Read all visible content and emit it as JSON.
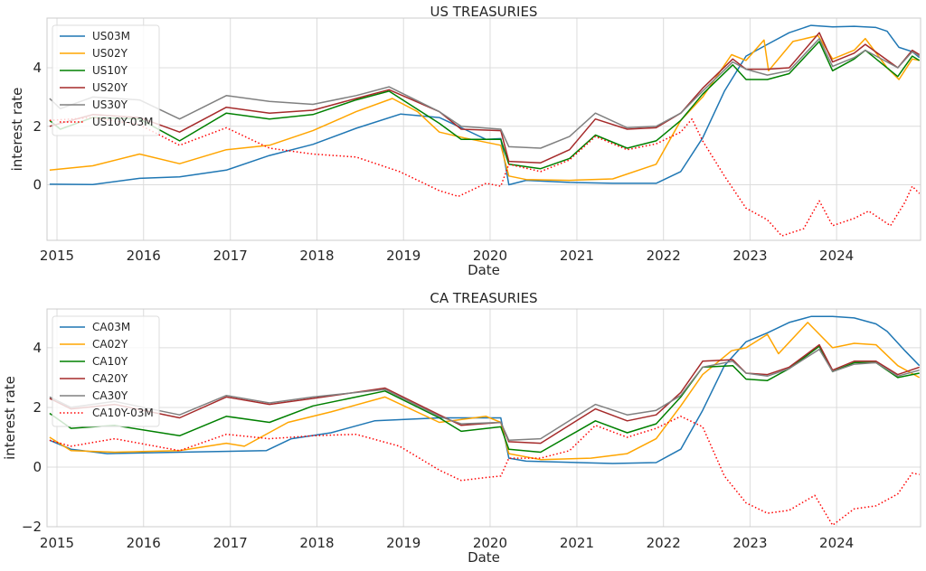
{
  "chart_data": [
    {
      "type": "line",
      "title": "US TREASURIES",
      "xlabel": "Date",
      "ylabel": "interest rate",
      "xlim": [
        "2014-11-20",
        "2024-12-20"
      ],
      "ylim": [
        -1.9,
        5.7
      ],
      "xticks": [
        "2015",
        "2016",
        "2017",
        "2018",
        "2019",
        "2020",
        "2021",
        "2022",
        "2023",
        "2024"
      ],
      "yticks": [
        0,
        2,
        4
      ],
      "grid": true,
      "legend": "top-left",
      "series": [
        {
          "name": "US03M",
          "color": "#1f77b4",
          "style": "solid",
          "x": [
            "2014-12-01",
            "2015-06-01",
            "2015-12-15",
            "2016-06-01",
            "2016-12-15",
            "2017-06-15",
            "2017-12-15",
            "2018-06-15",
            "2018-12-20",
            "2019-06-01",
            "2019-09-15",
            "2019-12-15",
            "2020-02-15",
            "2020-03-20",
            "2020-06-01",
            "2020-12-01",
            "2021-06-01",
            "2021-12-01",
            "2022-03-15",
            "2022-06-15",
            "2022-09-15",
            "2022-12-15",
            "2023-03-15",
            "2023-06-15",
            "2023-09-15",
            "2023-12-15",
            "2024-03-15",
            "2024-06-15",
            "2024-08-01",
            "2024-09-20",
            "2024-11-15",
            "2024-12-15"
          ],
          "y": [
            0.02,
            0.01,
            0.22,
            0.27,
            0.5,
            1.0,
            1.38,
            1.93,
            2.42,
            2.3,
            1.9,
            1.55,
            1.58,
            0.0,
            0.15,
            0.08,
            0.05,
            0.05,
            0.45,
            1.6,
            3.2,
            4.4,
            4.8,
            5.2,
            5.45,
            5.4,
            5.42,
            5.38,
            5.25,
            4.7,
            4.55,
            4.35
          ]
        },
        {
          "name": "US02Y",
          "color": "#ffa500",
          "style": "solid",
          "x": [
            "2014-12-01",
            "2015-06-01",
            "2015-12-15",
            "2016-06-01",
            "2016-12-15",
            "2017-06-15",
            "2017-12-15",
            "2018-06-15",
            "2018-11-15",
            "2019-03-01",
            "2019-06-01",
            "2019-09-15",
            "2020-02-15",
            "2020-03-20",
            "2020-06-01",
            "2020-12-01",
            "2021-06-01",
            "2021-12-01",
            "2022-03-15",
            "2022-06-15",
            "2022-10-15",
            "2022-12-15",
            "2023-03-01",
            "2023-03-20",
            "2023-07-01",
            "2023-10-15",
            "2023-12-15",
            "2024-03-15",
            "2024-05-01",
            "2024-08-01",
            "2024-09-20",
            "2024-11-15",
            "2024-12-15"
          ],
          "y": [
            0.5,
            0.65,
            1.05,
            0.72,
            1.2,
            1.35,
            1.85,
            2.5,
            2.95,
            2.5,
            1.8,
            1.6,
            1.35,
            0.3,
            0.18,
            0.15,
            0.2,
            0.7,
            2.2,
            3.0,
            4.45,
            4.25,
            4.95,
            3.9,
            4.9,
            5.1,
            4.3,
            4.6,
            5.0,
            4.0,
            3.6,
            4.3,
            4.25
          ]
        },
        {
          "name": "US10Y",
          "color": "#008000",
          "style": "solid",
          "x": [
            "2014-12-01",
            "2015-01-15",
            "2015-06-01",
            "2015-12-15",
            "2016-06-01",
            "2016-12-15",
            "2017-06-15",
            "2017-12-15",
            "2018-06-15",
            "2018-11-01",
            "2019-06-01",
            "2019-09-01",
            "2020-02-15",
            "2020-03-20",
            "2020-08-01",
            "2020-12-01",
            "2021-03-20",
            "2021-08-01",
            "2021-12-01",
            "2022-03-15",
            "2022-06-15",
            "2022-10-20",
            "2022-12-15",
            "2023-03-15",
            "2023-06-15",
            "2023-10-20",
            "2023-12-15",
            "2024-03-15",
            "2024-05-01",
            "2024-09-15",
            "2024-11-15",
            "2024-12-15"
          ],
          "y": [
            2.2,
            1.9,
            2.3,
            2.25,
            1.5,
            2.45,
            2.25,
            2.4,
            2.9,
            3.2,
            2.1,
            1.55,
            1.55,
            0.7,
            0.55,
            0.9,
            1.7,
            1.25,
            1.5,
            2.2,
            3.1,
            4.1,
            3.6,
            3.6,
            3.8,
            4.9,
            3.9,
            4.3,
            4.6,
            3.7,
            4.4,
            4.25
          ]
        },
        {
          "name": "US20Y",
          "color": "#a52a2a",
          "style": "solid",
          "x": [
            "2014-12-01",
            "2015-06-01",
            "2015-12-15",
            "2016-06-01",
            "2016-12-15",
            "2017-06-15",
            "2017-12-15",
            "2018-06-15",
            "2018-11-01",
            "2019-06-01",
            "2019-09-01",
            "2020-02-15",
            "2020-03-20",
            "2020-08-01",
            "2020-12-01",
            "2021-03-20",
            "2021-08-01",
            "2021-12-01",
            "2022-03-15",
            "2022-06-15",
            "2022-10-20",
            "2022-12-15",
            "2023-03-15",
            "2023-06-15",
            "2023-10-20",
            "2023-12-15",
            "2024-03-15",
            "2024-05-01",
            "2024-09-15",
            "2024-11-15",
            "2024-12-15"
          ],
          "y": [
            2.0,
            2.4,
            2.3,
            1.8,
            2.65,
            2.45,
            2.55,
            2.95,
            3.25,
            2.5,
            1.9,
            1.85,
            0.8,
            0.75,
            1.2,
            2.25,
            1.9,
            1.95,
            2.45,
            3.3,
            4.3,
            3.95,
            3.95,
            4.0,
            5.2,
            4.2,
            4.5,
            4.8,
            4.0,
            4.6,
            4.45
          ]
        },
        {
          "name": "US30Y",
          "color": "#808080",
          "style": "solid",
          "x": [
            "2014-12-01",
            "2015-01-15",
            "2015-06-01",
            "2015-12-15",
            "2016-06-01",
            "2016-12-15",
            "2017-06-15",
            "2017-12-15",
            "2018-06-15",
            "2018-11-01",
            "2019-06-01",
            "2019-09-01",
            "2020-02-15",
            "2020-03-20",
            "2020-08-01",
            "2020-12-01",
            "2021-03-20",
            "2021-08-01",
            "2021-12-01",
            "2022-03-15",
            "2022-06-15",
            "2022-10-20",
            "2022-12-15",
            "2023-03-15",
            "2023-06-15",
            "2023-10-20",
            "2023-12-15",
            "2024-03-15",
            "2024-05-01",
            "2024-09-15",
            "2024-11-15",
            "2024-12-15"
          ],
          "y": [
            2.95,
            2.6,
            3.0,
            2.9,
            2.25,
            3.05,
            2.85,
            2.75,
            3.05,
            3.35,
            2.5,
            2.0,
            1.9,
            1.3,
            1.25,
            1.65,
            2.45,
            1.95,
            2.0,
            2.45,
            3.2,
            4.2,
            3.95,
            3.75,
            3.9,
            5.0,
            4.05,
            4.35,
            4.6,
            4.0,
            4.55,
            4.4
          ]
        },
        {
          "name": "US10Y-03M",
          "color": "#ff0000",
          "style": "dotted",
          "x": [
            "2014-12-01",
            "2015-06-01",
            "2015-12-15",
            "2016-06-01",
            "2016-12-15",
            "2017-06-15",
            "2017-12-15",
            "2018-06-15",
            "2018-12-15",
            "2019-06-01",
            "2019-08-20",
            "2019-12-15",
            "2020-02-15",
            "2020-03-20",
            "2020-08-01",
            "2020-12-01",
            "2021-03-20",
            "2021-08-01",
            "2021-12-01",
            "2022-03-15",
            "2022-05-01",
            "2022-06-15",
            "2022-09-15",
            "2022-12-15",
            "2023-03-15",
            "2023-05-15",
            "2023-08-15",
            "2023-10-20",
            "2023-12-15",
            "2024-03-15",
            "2024-05-15",
            "2024-08-15",
            "2024-10-15",
            "2024-11-15",
            "2024-12-15"
          ],
          "y": [
            2.2,
            2.3,
            2.05,
            1.35,
            1.95,
            1.25,
            1.05,
            0.95,
            0.45,
            -0.2,
            -0.4,
            0.05,
            -0.05,
            0.7,
            0.45,
            0.85,
            1.65,
            1.2,
            1.4,
            1.8,
            2.25,
            1.5,
            0.3,
            -0.8,
            -1.2,
            -1.75,
            -1.5,
            -0.55,
            -1.4,
            -1.15,
            -0.9,
            -1.4,
            -0.6,
            -0.05,
            -0.3
          ]
        }
      ]
    },
    {
      "type": "line",
      "title": "CA TREASURIES",
      "xlabel": "Date",
      "ylabel": "interest rate",
      "xlim": [
        "2014-11-20",
        "2024-12-20"
      ],
      "ylim": [
        -2.0,
        5.3
      ],
      "xticks": [
        "2015",
        "2016",
        "2017",
        "2018",
        "2019",
        "2020",
        "2021",
        "2022",
        "2023",
        "2024"
      ],
      "yticks": [
        -2,
        0,
        2,
        4
      ],
      "grid": true,
      "legend": "top-left",
      "series": [
        {
          "name": "CA03M",
          "color": "#1f77b4",
          "style": "solid",
          "x": [
            "2014-12-01",
            "2015-03-01",
            "2015-08-01",
            "2016-06-01",
            "2017-06-01",
            "2017-09-15",
            "2018-03-01",
            "2018-09-01",
            "2019-06-01",
            "2020-02-15",
            "2020-03-20",
            "2020-06-01",
            "2021-06-01",
            "2021-12-01",
            "2022-03-15",
            "2022-06-15",
            "2022-09-15",
            "2022-12-15",
            "2023-03-15",
            "2023-06-15",
            "2023-09-15",
            "2023-12-15",
            "2024-03-15",
            "2024-06-15",
            "2024-08-01",
            "2024-10-15",
            "2024-12-15"
          ],
          "y": [
            0.9,
            0.6,
            0.45,
            0.5,
            0.55,
            0.95,
            1.15,
            1.55,
            1.65,
            1.65,
            0.3,
            0.2,
            0.12,
            0.15,
            0.6,
            1.9,
            3.4,
            4.2,
            4.5,
            4.85,
            5.05,
            5.05,
            5.0,
            4.8,
            4.55,
            3.9,
            3.4
          ]
        },
        {
          "name": "CA02Y",
          "color": "#ffa500",
          "style": "solid",
          "x": [
            "2014-12-01",
            "2015-03-01",
            "2015-09-01",
            "2016-06-01",
            "2016-12-15",
            "2017-03-01",
            "2017-09-01",
            "2018-03-01",
            "2018-10-15",
            "2019-06-01",
            "2019-12-15",
            "2020-02-15",
            "2020-03-20",
            "2020-08-01",
            "2021-03-01",
            "2021-08-01",
            "2021-12-01",
            "2022-03-15",
            "2022-06-15",
            "2022-10-15",
            "2022-12-15",
            "2023-03-15",
            "2023-05-01",
            "2023-09-01",
            "2023-12-15",
            "2024-03-15",
            "2024-06-15",
            "2024-09-15",
            "2024-12-15"
          ],
          "y": [
            1.0,
            0.55,
            0.5,
            0.55,
            0.8,
            0.7,
            1.5,
            1.85,
            2.35,
            1.5,
            1.7,
            1.5,
            0.45,
            0.25,
            0.3,
            0.45,
            0.95,
            2.05,
            3.1,
            3.9,
            4.0,
            4.45,
            3.8,
            4.85,
            4.0,
            4.15,
            4.1,
            3.4,
            3.0
          ]
        },
        {
          "name": "CA10Y",
          "color": "#008000",
          "style": "solid",
          "x": [
            "2014-12-01",
            "2015-03-01",
            "2015-09-01",
            "2016-06-01",
            "2016-12-15",
            "2017-06-15",
            "2017-12-15",
            "2018-10-15",
            "2019-06-01",
            "2019-09-01",
            "2020-02-15",
            "2020-03-20",
            "2020-08-01",
            "2021-03-20",
            "2021-08-01",
            "2021-12-01",
            "2022-03-15",
            "2022-06-15",
            "2022-10-20",
            "2022-12-15",
            "2023-03-15",
            "2023-06-15",
            "2023-10-20",
            "2023-12-15",
            "2024-03-15",
            "2024-06-15",
            "2024-09-15",
            "2024-12-15"
          ],
          "y": [
            1.8,
            1.3,
            1.4,
            1.05,
            1.7,
            1.5,
            2.05,
            2.55,
            1.65,
            1.2,
            1.35,
            0.6,
            0.5,
            1.55,
            1.15,
            1.45,
            2.35,
            3.35,
            3.4,
            2.95,
            2.9,
            3.3,
            4.05,
            3.2,
            3.5,
            3.5,
            3.0,
            3.15
          ]
        },
        {
          "name": "CA20Y",
          "color": "#a52a2a",
          "style": "solid",
          "x": [
            "2014-12-01",
            "2015-03-01",
            "2015-09-01",
            "2016-06-01",
            "2016-12-15",
            "2017-06-15",
            "2017-12-15",
            "2018-10-15",
            "2019-06-01",
            "2019-09-01",
            "2020-02-15",
            "2020-03-20",
            "2020-08-01",
            "2021-03-20",
            "2021-08-01",
            "2021-12-01",
            "2022-03-15",
            "2022-06-15",
            "2022-10-20",
            "2022-12-15",
            "2023-03-15",
            "2023-06-15",
            "2023-10-20",
            "2023-12-15",
            "2024-03-15",
            "2024-06-15",
            "2024-09-15",
            "2024-12-15"
          ],
          "y": [
            2.3,
            1.95,
            2.1,
            1.65,
            2.35,
            2.1,
            2.3,
            2.65,
            1.75,
            1.4,
            1.5,
            0.85,
            0.8,
            1.95,
            1.55,
            1.75,
            2.5,
            3.55,
            3.6,
            3.15,
            3.1,
            3.35,
            4.1,
            3.25,
            3.55,
            3.55,
            3.1,
            3.35
          ]
        },
        {
          "name": "CA30Y",
          "color": "#808080",
          "style": "solid",
          "x": [
            "2014-12-01",
            "2015-03-01",
            "2015-09-01",
            "2016-06-01",
            "2016-12-15",
            "2017-06-15",
            "2017-12-15",
            "2018-10-15",
            "2019-06-01",
            "2019-09-01",
            "2020-02-15",
            "2020-03-20",
            "2020-08-01",
            "2021-03-20",
            "2021-08-01",
            "2021-12-01",
            "2022-03-15",
            "2022-06-15",
            "2022-10-20",
            "2022-12-15",
            "2023-03-15",
            "2023-06-15",
            "2023-10-20",
            "2023-12-15",
            "2024-03-15",
            "2024-06-15",
            "2024-09-15",
            "2024-12-15"
          ],
          "y": [
            2.35,
            2.0,
            2.2,
            1.75,
            2.4,
            2.15,
            2.35,
            2.6,
            1.7,
            1.45,
            1.5,
            0.9,
            0.95,
            2.1,
            1.75,
            1.9,
            2.4,
            3.35,
            3.55,
            3.15,
            3.05,
            3.3,
            3.95,
            3.2,
            3.45,
            3.5,
            3.05,
            3.25
          ]
        },
        {
          "name": "CA10Y-03M",
          "color": "#ff0000",
          "style": "dotted",
          "x": [
            "2014-12-01",
            "2015-03-01",
            "2015-09-01",
            "2016-06-01",
            "2016-12-15",
            "2017-06-15",
            "2017-12-15",
            "2018-06-15",
            "2018-12-15",
            "2019-06-01",
            "2019-09-01",
            "2019-12-15",
            "2020-02-15",
            "2020-03-20",
            "2020-08-01",
            "2020-12-01",
            "2021-03-20",
            "2021-08-01",
            "2021-12-01",
            "2022-03-15",
            "2022-06-15",
            "2022-09-15",
            "2022-12-15",
            "2023-03-15",
            "2023-06-15",
            "2023-10-01",
            "2023-12-15",
            "2024-03-15",
            "2024-06-15",
            "2024-09-15",
            "2024-11-15",
            "2024-12-15"
          ],
          "y": [
            0.9,
            0.7,
            0.95,
            0.55,
            1.1,
            0.95,
            1.05,
            1.1,
            0.7,
            -0.1,
            -0.45,
            -0.35,
            -0.3,
            0.3,
            0.3,
            0.55,
            1.4,
            1.0,
            1.3,
            1.7,
            1.35,
            -0.3,
            -1.2,
            -1.55,
            -1.45,
            -0.95,
            -1.95,
            -1.4,
            -1.3,
            -0.9,
            -0.2,
            -0.25
          ]
        }
      ]
    }
  ]
}
